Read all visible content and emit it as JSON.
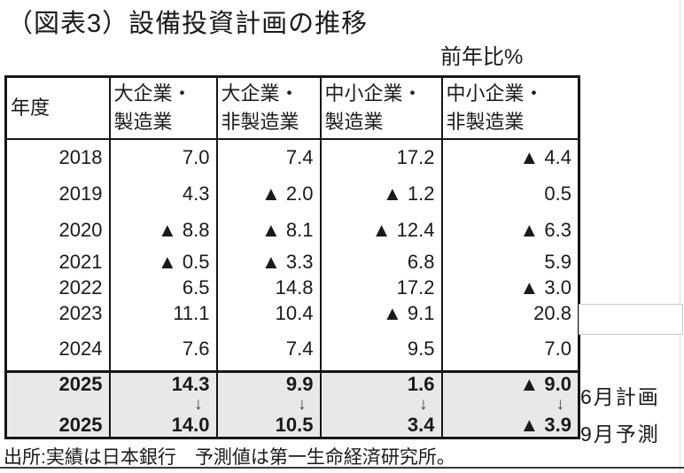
{
  "title": "（図表3）設備投資計画の推移",
  "unit_note": "前年比%",
  "table": {
    "year_header": "年度",
    "columns": [
      {
        "line1": "大企業・",
        "line2": "製造業"
      },
      {
        "line1": "大企業・",
        "line2": "非製造業"
      },
      {
        "line1": "中小企業・",
        "line2": "製造業"
      },
      {
        "line1": "中小企業・",
        "line2": "非製造業"
      }
    ],
    "rows": [
      {
        "year": "2018",
        "values": [
          "7.0",
          "7.4",
          "17.2",
          "▲ 4.4"
        ]
      },
      {
        "year": "2019",
        "values": [
          "4.3",
          "▲ 2.0",
          "▲ 1.2",
          "0.5"
        ]
      },
      {
        "year": "2020",
        "values": [
          "▲ 8.8",
          "▲ 8.1",
          "▲ 12.4",
          "▲ 6.3"
        ]
      },
      {
        "year": "2021",
        "values": [
          "▲ 0.5",
          "▲ 3.3",
          "6.8",
          "5.9"
        ]
      },
      {
        "year": "2022",
        "values": [
          "6.5",
          "14.8",
          "17.2",
          "▲ 3.0"
        ]
      },
      {
        "year": "2023",
        "values": [
          "11.1",
          "10.4",
          "▲ 9.1",
          "20.8"
        ]
      },
      {
        "year": "2024",
        "values": [
          "7.6",
          "7.4",
          "9.5",
          "7.0"
        ]
      }
    ],
    "plan_row": {
      "year": "2025",
      "values": [
        "14.3",
        "9.9",
        "1.6",
        "▲ 9.0"
      ]
    },
    "arrow_glyph": "↓",
    "forecast_row": {
      "year": "2025",
      "values": [
        "14.0",
        "10.5",
        "3.4",
        "▲ 3.9"
      ]
    },
    "plan_label": "6月計画",
    "forecast_label": "9月予測"
  },
  "source_note": "出所:実績は日本銀行　予測値は第一生命経済研究所。",
  "colors": {
    "highlight_section_bg": "#e8e8e8",
    "border": "#161616",
    "text": "#1a1a1a"
  },
  "chart_data": {
    "type": "table",
    "title": "（図表3）設備投資計画の推移",
    "unit": "前年比%",
    "negative_marker": "▲",
    "columns": [
      "年度",
      "大企業・製造業",
      "大企業・非製造業",
      "中小企業・製造業",
      "中小企業・非製造業"
    ],
    "rows": [
      [
        "2018",
        7.0,
        7.4,
        17.2,
        -4.4
      ],
      [
        "2019",
        4.3,
        -2.0,
        -1.2,
        0.5
      ],
      [
        "2020",
        -8.8,
        -8.1,
        -12.4,
        -6.3
      ],
      [
        "2021",
        -0.5,
        -3.3,
        6.8,
        5.9
      ],
      [
        "2022",
        6.5,
        14.8,
        17.2,
        -3.0
      ],
      [
        "2023",
        11.1,
        10.4,
        -9.1,
        20.8
      ],
      [
        "2024",
        7.6,
        7.4,
        9.5,
        7.0
      ],
      [
        "2025 6月計画",
        14.3,
        9.9,
        1.6,
        -9.0
      ],
      [
        "2025 9月予測",
        14.0,
        10.5,
        3.4,
        -3.9
      ]
    ],
    "source": "出所:実績は日本銀行　予測値は第一生命経済研究所。"
  }
}
